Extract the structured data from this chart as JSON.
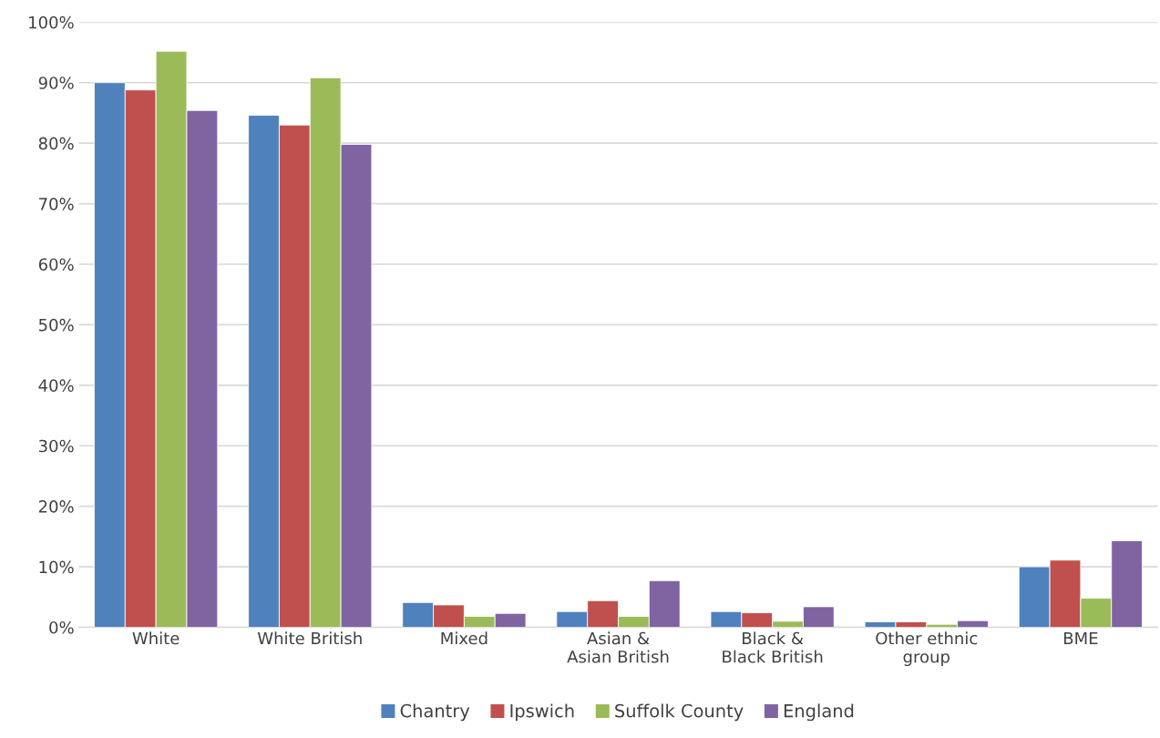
{
  "chart_data": {
    "type": "bar",
    "categories": [
      "White",
      "White British",
      "Mixed",
      "Asian & Asian British",
      "Black & Black British",
      "Other ethnic group",
      "BME"
    ],
    "series": [
      {
        "name": "Chantry",
        "color": "#4f81bd",
        "values": [
          90.0,
          84.6,
          4.1,
          2.6,
          2.6,
          0.9,
          10.0
        ]
      },
      {
        "name": "Ipswich",
        "color": "#c0504d",
        "values": [
          88.8,
          83.0,
          3.7,
          4.4,
          2.4,
          0.9,
          11.1
        ]
      },
      {
        "name": "Suffolk County",
        "color": "#9bbb59",
        "values": [
          95.2,
          90.8,
          1.8,
          1.8,
          1.0,
          0.5,
          4.8
        ]
      },
      {
        "name": "England",
        "color": "#8064a2",
        "values": [
          85.4,
          79.8,
          2.3,
          7.7,
          3.4,
          1.1,
          14.3
        ]
      }
    ],
    "ylim": [
      0,
      100
    ],
    "yticks": [
      {
        "value": 0,
        "label": "0%"
      },
      {
        "value": 10,
        "label": "10%"
      },
      {
        "value": 20,
        "label": "20%"
      },
      {
        "value": 30,
        "label": "30%"
      },
      {
        "value": 40,
        "label": "40%"
      },
      {
        "value": 50,
        "label": "50%"
      },
      {
        "value": 60,
        "label": "60%"
      },
      {
        "value": 70,
        "label": "70%"
      },
      {
        "value": 80,
        "label": "80%"
      },
      {
        "value": 90,
        "label": "90%"
      },
      {
        "value": 100,
        "label": "100%"
      }
    ],
    "grid": "y",
    "legend": "bottom"
  }
}
